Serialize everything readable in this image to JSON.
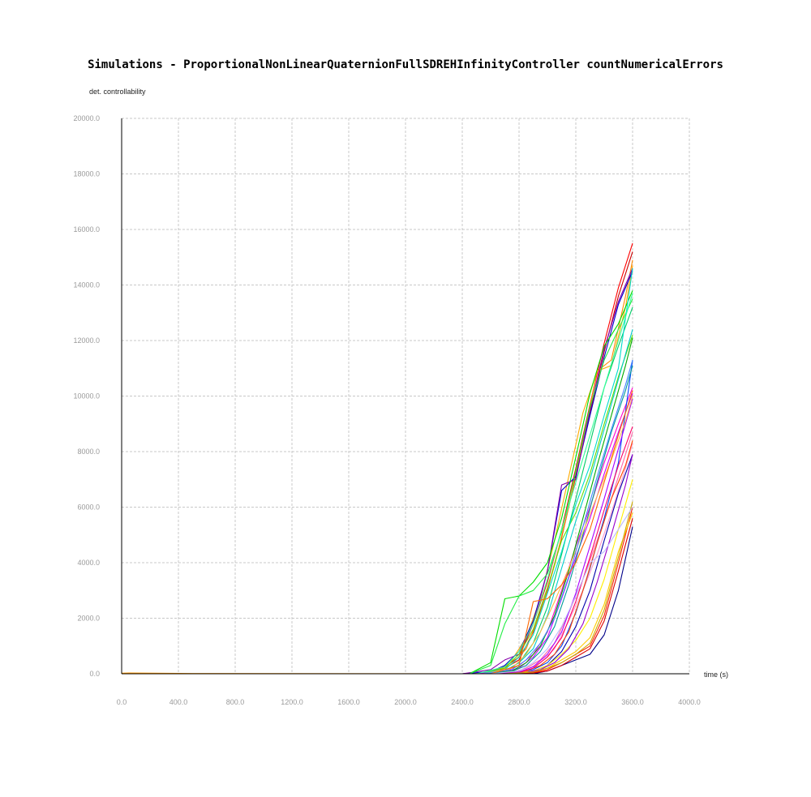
{
  "chart_data": {
    "type": "line",
    "title": "Simulations - ProportionalNonLinearQuaternionFullSDREHInfinityController countNumericalErrors",
    "ylabel": "det. controllability",
    "xlabel": "time (s)",
    "xlim": [
      0,
      4000
    ],
    "ylim": [
      0,
      20000
    ],
    "xticks": [
      "0.0",
      "400.0",
      "800.0",
      "1200.0",
      "1600.0",
      "2000.0",
      "2400.0",
      "2800.0",
      "3200.0",
      "3600.0",
      "4000.0"
    ],
    "yticks": [
      "0.0",
      "2000.0",
      "4000.0",
      "6000.0",
      "8000.0",
      "10000.0",
      "12000.0",
      "14000.0",
      "16000.0",
      "18000.0",
      "20000.0"
    ],
    "grid": true,
    "series": [
      {
        "color": "#ff0000",
        "x": [
          0,
          2400,
          2600,
          2700,
          2800,
          2900,
          3000,
          3100,
          3200,
          3300,
          3400,
          3500,
          3600
        ],
        "y": [
          0,
          0,
          50,
          250,
          600,
          1800,
          3300,
          5200,
          7400,
          9700,
          11900,
          13900,
          15500
        ]
      },
      {
        "color": "#cc0000",
        "x": [
          0,
          2400,
          2600,
          2700,
          2800,
          2900,
          3000,
          3100,
          3200,
          3300,
          3400,
          3500,
          3600
        ],
        "y": [
          0,
          0,
          30,
          200,
          500,
          1500,
          3000,
          4900,
          7100,
          9400,
          11600,
          13600,
          15200
        ]
      },
      {
        "color": "#ff8800",
        "x": [
          0,
          2450,
          2650,
          2750,
          2850,
          2950,
          3050,
          3150,
          3250,
          3350,
          3450,
          3550,
          3600
        ],
        "y": [
          0,
          0,
          60,
          350,
          900,
          2200,
          3900,
          6000,
          8400,
          10900,
          11300,
          13600,
          14900
        ]
      },
      {
        "color": "#ffaa00",
        "x": [
          0,
          2450,
          2650,
          2750,
          2850,
          2950,
          3050,
          3150,
          3250,
          3350,
          3450,
          3550,
          3600
        ],
        "y": [
          0,
          0,
          100,
          500,
          1300,
          2700,
          4800,
          7100,
          9400,
          10900,
          11100,
          13200,
          14700
        ]
      },
      {
        "color": "#0000cc",
        "x": [
          0,
          2400,
          2600,
          2700,
          2800,
          2900,
          3000,
          3100,
          3200,
          3300,
          3400,
          3500,
          3600
        ],
        "y": [
          0,
          0,
          80,
          300,
          800,
          1900,
          3700,
          6600,
          7100,
          9300,
          11400,
          13300,
          14500
        ]
      },
      {
        "color": "#8800aa",
        "x": [
          0,
          2400,
          2600,
          2700,
          2800,
          2900,
          3000,
          3100,
          3200,
          3300,
          3400,
          3500,
          3600
        ],
        "y": [
          0,
          0,
          150,
          500,
          700,
          1800,
          3700,
          6800,
          7000,
          9500,
          11700,
          13400,
          14600
        ]
      },
      {
        "color": "#00dd00",
        "x": [
          0,
          2450,
          2600,
          2700,
          2800,
          2900,
          3000,
          3100,
          3200,
          3300,
          3400,
          3500,
          3600
        ],
        "y": [
          0,
          0,
          400,
          2700,
          2800,
          3300,
          4000,
          5600,
          7800,
          10100,
          11800,
          12600,
          13800
        ]
      },
      {
        "color": "#22ee44",
        "x": [
          0,
          2450,
          2600,
          2700,
          2800,
          2900,
          3000,
          3100,
          3200,
          3300,
          3400,
          3500,
          3600
        ],
        "y": [
          0,
          0,
          300,
          1800,
          2800,
          3000,
          3600,
          5100,
          7300,
          9600,
          11300,
          12400,
          13500
        ]
      },
      {
        "color": "#00cc66",
        "x": [
          0,
          2500,
          2700,
          2800,
          2900,
          3000,
          3100,
          3200,
          3300,
          3400,
          3500,
          3600
        ],
        "y": [
          0,
          0,
          100,
          400,
          1100,
          2400,
          4300,
          6300,
          8300,
          10300,
          11800,
          13200
        ]
      },
      {
        "color": "#66dd00",
        "x": [
          0,
          2500,
          2700,
          2800,
          2900,
          3000,
          3100,
          3200,
          3300,
          3400,
          3500,
          3600
        ],
        "y": [
          0,
          0,
          200,
          700,
          1600,
          3100,
          4800,
          5800,
          7200,
          9000,
          10700,
          12200
        ]
      },
      {
        "color": "#00ddcc",
        "x": [
          0,
          2500,
          2700,
          2800,
          2900,
          3000,
          3100,
          3200,
          3300,
          3400,
          3500,
          3600
        ],
        "y": [
          0,
          0,
          150,
          600,
          1400,
          2900,
          4400,
          6100,
          7500,
          9300,
          11000,
          14600
        ]
      },
      {
        "color": "#00cccc",
        "x": [
          0,
          2500,
          2700,
          2800,
          2900,
          3000,
          3100,
          3200,
          3300,
          3400,
          3500,
          3600
        ],
        "y": [
          0,
          0,
          100,
          400,
          900,
          2100,
          3800,
          5500,
          7000,
          8800,
          10600,
          12400
        ]
      },
      {
        "color": "#ff00cc",
        "x": [
          0,
          2500,
          2700,
          2800,
          2900,
          3000,
          3100,
          3200,
          3300,
          3400,
          3500,
          3600
        ],
        "y": [
          0,
          0,
          80,
          300,
          700,
          1500,
          3000,
          4600,
          6000,
          7600,
          9000,
          10300
        ]
      },
      {
        "color": "#cc00ff",
        "x": [
          0,
          2500,
          2700,
          2800,
          2900,
          3000,
          3100,
          3200,
          3300,
          3400,
          3500,
          3600
        ],
        "y": [
          0,
          0,
          60,
          200,
          600,
          1300,
          2700,
          4200,
          5600,
          7200,
          8700,
          10100
        ]
      },
      {
        "color": "#ff66aa",
        "x": [
          0,
          2550,
          2750,
          2850,
          2950,
          3050,
          3150,
          3250,
          3350,
          3450,
          3550,
          3600
        ],
        "y": [
          0,
          0,
          50,
          200,
          500,
          1100,
          2200,
          3400,
          4800,
          6300,
          7900,
          8700
        ]
      },
      {
        "color": "#ff99cc",
        "x": [
          0,
          2550,
          2750,
          2850,
          2950,
          3050,
          3150,
          3250,
          3350,
          3450,
          3550,
          3600
        ],
        "y": [
          0,
          0,
          30,
          150,
          400,
          900,
          1900,
          3000,
          4300,
          5800,
          7400,
          8300
        ]
      },
      {
        "color": "#0044ff",
        "x": [
          0,
          2600,
          2800,
          2900,
          3000,
          3100,
          3200,
          3300,
          3400,
          3500,
          3600
        ],
        "y": [
          0,
          0,
          50,
          150,
          400,
          1000,
          2200,
          3800,
          5600,
          7600,
          11300
        ]
      },
      {
        "color": "#0000aa",
        "x": [
          0,
          2600,
          2800,
          2900,
          3000,
          3100,
          3200,
          3300,
          3400,
          3500,
          3600
        ],
        "y": [
          0,
          0,
          30,
          100,
          300,
          800,
          1700,
          3000,
          4800,
          6500,
          7900
        ]
      },
      {
        "color": "#000088",
        "x": [
          0,
          2700,
          2900,
          3000,
          3100,
          3200,
          3300,
          3400,
          3500,
          3600
        ],
        "y": [
          0,
          0,
          0,
          100,
          300,
          500,
          700,
          1400,
          3000,
          5300
        ]
      },
      {
        "color": "#ff2200",
        "x": [
          0,
          2700,
          2900,
          3000,
          3100,
          3200,
          3300,
          3400,
          3500,
          3600
        ],
        "y": [
          0,
          0,
          50,
          150,
          400,
          700,
          1000,
          2100,
          4000,
          6000
        ]
      },
      {
        "color": "#dd0000",
        "x": [
          0,
          2700,
          2900,
          3000,
          3100,
          3200,
          3300,
          3400,
          3500,
          3600
        ],
        "y": [
          0,
          0,
          30,
          100,
          300,
          600,
          900,
          1900,
          3700,
          5600
        ]
      },
      {
        "color": "#ffcc00",
        "x": [
          0,
          2700,
          2900,
          3000,
          3100,
          3200,
          3300,
          3400,
          3500,
          3600
        ],
        "y": [
          0,
          0,
          80,
          200,
          500,
          800,
          1300,
          2500,
          4400,
          5800
        ]
      },
      {
        "color": "#ffee00",
        "x": [
          0,
          2700,
          2900,
          3000,
          3100,
          3200,
          3300,
          3400,
          3500,
          3600
        ],
        "y": [
          0,
          0,
          100,
          300,
          700,
          1200,
          2000,
          3400,
          5200,
          7000
        ]
      },
      {
        "color": "#ff4400",
        "x": [
          0,
          2650,
          2850,
          2950,
          3050,
          3150,
          3250,
          3350,
          3450,
          3550,
          3600
        ],
        "y": [
          0,
          0,
          100,
          300,
          700,
          1500,
          3000,
          4700,
          6300,
          7500,
          8400
        ]
      },
      {
        "color": "#00aa00",
        "x": [
          0,
          2550,
          2750,
          2850,
          2950,
          3050,
          3150,
          3250,
          3350,
          3450,
          3550,
          3600
        ],
        "y": [
          0,
          0,
          100,
          400,
          1000,
          2100,
          3700,
          5600,
          7500,
          9300,
          11100,
          12100
        ]
      },
      {
        "color": "#009999",
        "x": [
          0,
          2550,
          2750,
          2850,
          2950,
          3050,
          3150,
          3250,
          3350,
          3450,
          3550,
          3600
        ],
        "y": [
          0,
          0,
          80,
          300,
          800,
          1700,
          3200,
          5000,
          6900,
          8700,
          10200,
          11100
        ]
      },
      {
        "color": "#aa00ff",
        "x": [
          0,
          2600,
          2800,
          2900,
          3000,
          3100,
          3200,
          3300,
          3400,
          3500,
          3600
        ],
        "y": [
          0,
          0,
          60,
          250,
          700,
          1500,
          2900,
          4600,
          6300,
          8100,
          9900
        ]
      },
      {
        "color": "#ff0066",
        "x": [
          0,
          2600,
          2800,
          2900,
          3000,
          3100,
          3200,
          3300,
          3400,
          3500,
          3600
        ],
        "y": [
          0,
          0,
          40,
          200,
          600,
          1300,
          2600,
          4200,
          5900,
          7500,
          8900
        ]
      },
      {
        "color": "#ffbb44",
        "x": [
          0,
          2550,
          2750,
          2850,
          2950,
          3050,
          3150,
          3250,
          3350,
          3450,
          3550,
          3600
        ],
        "y": [
          0,
          0,
          200,
          700,
          1500,
          2600,
          3800,
          5100,
          6400,
          7700,
          9100,
          10000
        ]
      },
      {
        "color": "#33ff99",
        "x": [
          0,
          2500,
          2700,
          2800,
          2900,
          3000,
          3100,
          3200,
          3300,
          3400,
          3500,
          3600
        ],
        "y": [
          0,
          0,
          250,
          800,
          1800,
          3400,
          5200,
          6900,
          8600,
          10300,
          12000,
          13700
        ]
      },
      {
        "color": "#9900cc",
        "x": [
          0,
          2650,
          2850,
          2950,
          3050,
          3150,
          3250,
          3350,
          3450,
          3550,
          3600
        ],
        "y": [
          0,
          0,
          50,
          150,
          400,
          900,
          1800,
          3300,
          5000,
          6800,
          7900
        ]
      },
      {
        "color": "#4488ff",
        "x": [
          0,
          2550,
          2750,
          2850,
          2950,
          3050,
          3150,
          3250,
          3350,
          3450,
          3550,
          3600
        ],
        "y": [
          0,
          0,
          150,
          500,
          1100,
          2000,
          3500,
          5300,
          7100,
          8800,
          10400,
          11300
        ]
      },
      {
        "color": "#ccaa00",
        "x": [
          0,
          2700,
          2900,
          3000,
          3100,
          3200,
          3300,
          3400,
          3500,
          3600
        ],
        "y": [
          0,
          0,
          60,
          200,
          400,
          700,
          1100,
          2300,
          4200,
          6200
        ]
      },
      {
        "color": "#ff6600",
        "x": [
          0,
          2600,
          2800,
          2900,
          3000,
          3100,
          3200,
          3300,
          3400,
          3500,
          3600
        ],
        "y": [
          0,
          0,
          300,
          2600,
          2700,
          3200,
          4000,
          5200,
          6900,
          8600,
          10200
        ]
      },
      {
        "color": "#bbbbff",
        "x": [
          0,
          2600,
          2800,
          2900,
          3000,
          3100,
          3200,
          3300,
          3400,
          3500,
          3600
        ],
        "y": [
          0,
          0,
          100,
          400,
          900,
          1700,
          2800,
          4000,
          4400,
          5200,
          6000
        ]
      },
      {
        "color": "#ff9900",
        "x": [
          0,
          50,
          500,
          2400
        ],
        "y": [
          20,
          30,
          10,
          0
        ]
      }
    ]
  }
}
